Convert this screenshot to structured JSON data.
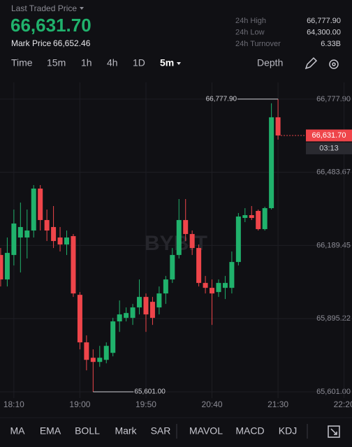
{
  "header": {
    "last_traded_label": "Last Traded Price",
    "last_price": "66,631.70",
    "mark_price_label": "Mark Price",
    "mark_price": "66,652.46",
    "stats": [
      {
        "label": "24h High",
        "value": "66,777.90"
      },
      {
        "label": "24h Low",
        "value": "64,300.00"
      },
      {
        "label": "24h Turnover",
        "value": "6.33B"
      }
    ]
  },
  "tabs": {
    "intervals": [
      "Time",
      "15m",
      "1h",
      "4h",
      "1D",
      "5m"
    ],
    "depth": "Depth"
  },
  "indicators": [
    "MA",
    "EMA",
    "BOLL",
    "Mark",
    "SAR",
    "MAVOL",
    "MACD",
    "KDJ"
  ],
  "chart_data": {
    "type": "candlestick",
    "watermark": "BYBIT",
    "up_color": "#20b26c",
    "down_color": "#ef454a",
    "grid": true,
    "open": [
      66151.1,
      66052.7,
      66151.1,
      66221.4,
      66221.4,
      66249.5,
      66418.1,
      66291.6,
      66263.5,
      66221.4,
      66193.3,
      66227.0,
      65990.9,
      65799.8,
      65737.9,
      65721.1,
      65729.5,
      65757.6,
      65884.1,
      65898.2,
      65898.2,
      65940.3,
      65982.5,
      65962.8,
      65940.3,
      65996.5,
      66052.7,
      66151.1,
      66291.6,
      66235.4,
      66179.2,
      66038.7,
      66019.0,
      66002.1,
      66019.0,
      66019.0,
      66123.0,
      66300.1,
      66311.3,
      66328.2,
      66255.1,
      66339.4,
      66704.8
    ],
    "high": [
      66179.2,
      66221.4,
      66333.8,
      66361.9,
      66333.8,
      66432.2,
      66432.2,
      66333.8,
      66347.9,
      66263.5,
      66249.5,
      66235.4,
      66002.1,
      65827.9,
      65771.7,
      65785.7,
      65799.8,
      65898.2,
      65968.4,
      65940.3,
      65954.4,
      66052.7,
      65996.5,
      65982.5,
      66024.6,
      66066.8,
      66179.2,
      66376.0,
      66376.0,
      66249.5,
      66193.3,
      66066.8,
      66052.7,
      66052.7,
      66066.8,
      66165.2,
      66319.8,
      66339.4,
      66347.9,
      66333.8,
      66345.1,
      66761.0,
      66777.9
    ],
    "low": [
      66024.6,
      66024.6,
      66109.0,
      66080.8,
      66137.1,
      66221.4,
      66249.5,
      66207.3,
      66179.2,
      66165.2,
      66151.1,
      65982.5,
      65771.7,
      65687.3,
      65601.0,
      65701.4,
      65715.5,
      65743.6,
      65841.9,
      65884.1,
      65870.0,
      65912.2,
      65841.9,
      65870.0,
      65912.2,
      65954.4,
      66038.7,
      66137.1,
      66207.3,
      66151.1,
      66024.6,
      65996.5,
      65870.0,
      65982.5,
      65974.0,
      65996.5,
      66109.0,
      66283.2,
      66291.6,
      66249.5,
      66249.5,
      66333.8,
      66614.9
    ],
    "close": [
      66052.7,
      66159.5,
      66277.6,
      66263.5,
      66249.5,
      66418.1,
      66291.6,
      66249.5,
      66207.3,
      66193.3,
      66221.4,
      65996.5,
      65799.8,
      65729.5,
      65721.1,
      65737.9,
      65785.7,
      65884.1,
      65912.2,
      65917.8,
      65940.3,
      65982.5,
      65912.2,
      65898.2,
      65996.5,
      66052.7,
      66151.1,
      66291.6,
      66235.4,
      66179.2,
      66038.7,
      66019.0,
      65996.5,
      66038.7,
      66038.7,
      66123.0,
      66305.7,
      66311.3,
      66300.1,
      66255.1,
      66339.4,
      66704.8,
      66631.7
    ],
    "ylim": [
      65497.0,
      66845.0
    ],
    "yticks": [
      {
        "value": 66777.9,
        "label": "66,777.90"
      },
      {
        "value": 66483.67,
        "label": "66,483.67"
      },
      {
        "value": 66189.45,
        "label": "66,189.45"
      },
      {
        "value": 65895.22,
        "label": "65,895.22"
      },
      {
        "value": 65601.0,
        "label": "65,601.00"
      }
    ],
    "xlim": [
      -0.1,
      53.2
    ],
    "xticks": [
      {
        "value": 2,
        "label": "18:10"
      },
      {
        "value": 12,
        "label": "19:00"
      },
      {
        "value": 22,
        "label": "19:50"
      },
      {
        "value": 32,
        "label": "20:40"
      },
      {
        "value": 42,
        "label": "21:30"
      },
      {
        "value": 52,
        "label": "22:20"
      }
    ],
    "annotations": [
      {
        "value": 66777.9,
        "label": "66,777.90"
      },
      {
        "value": 65601.0,
        "label": "65,601.00"
      }
    ],
    "last_price_label": "66,631.70",
    "countdown": "03:13"
  }
}
